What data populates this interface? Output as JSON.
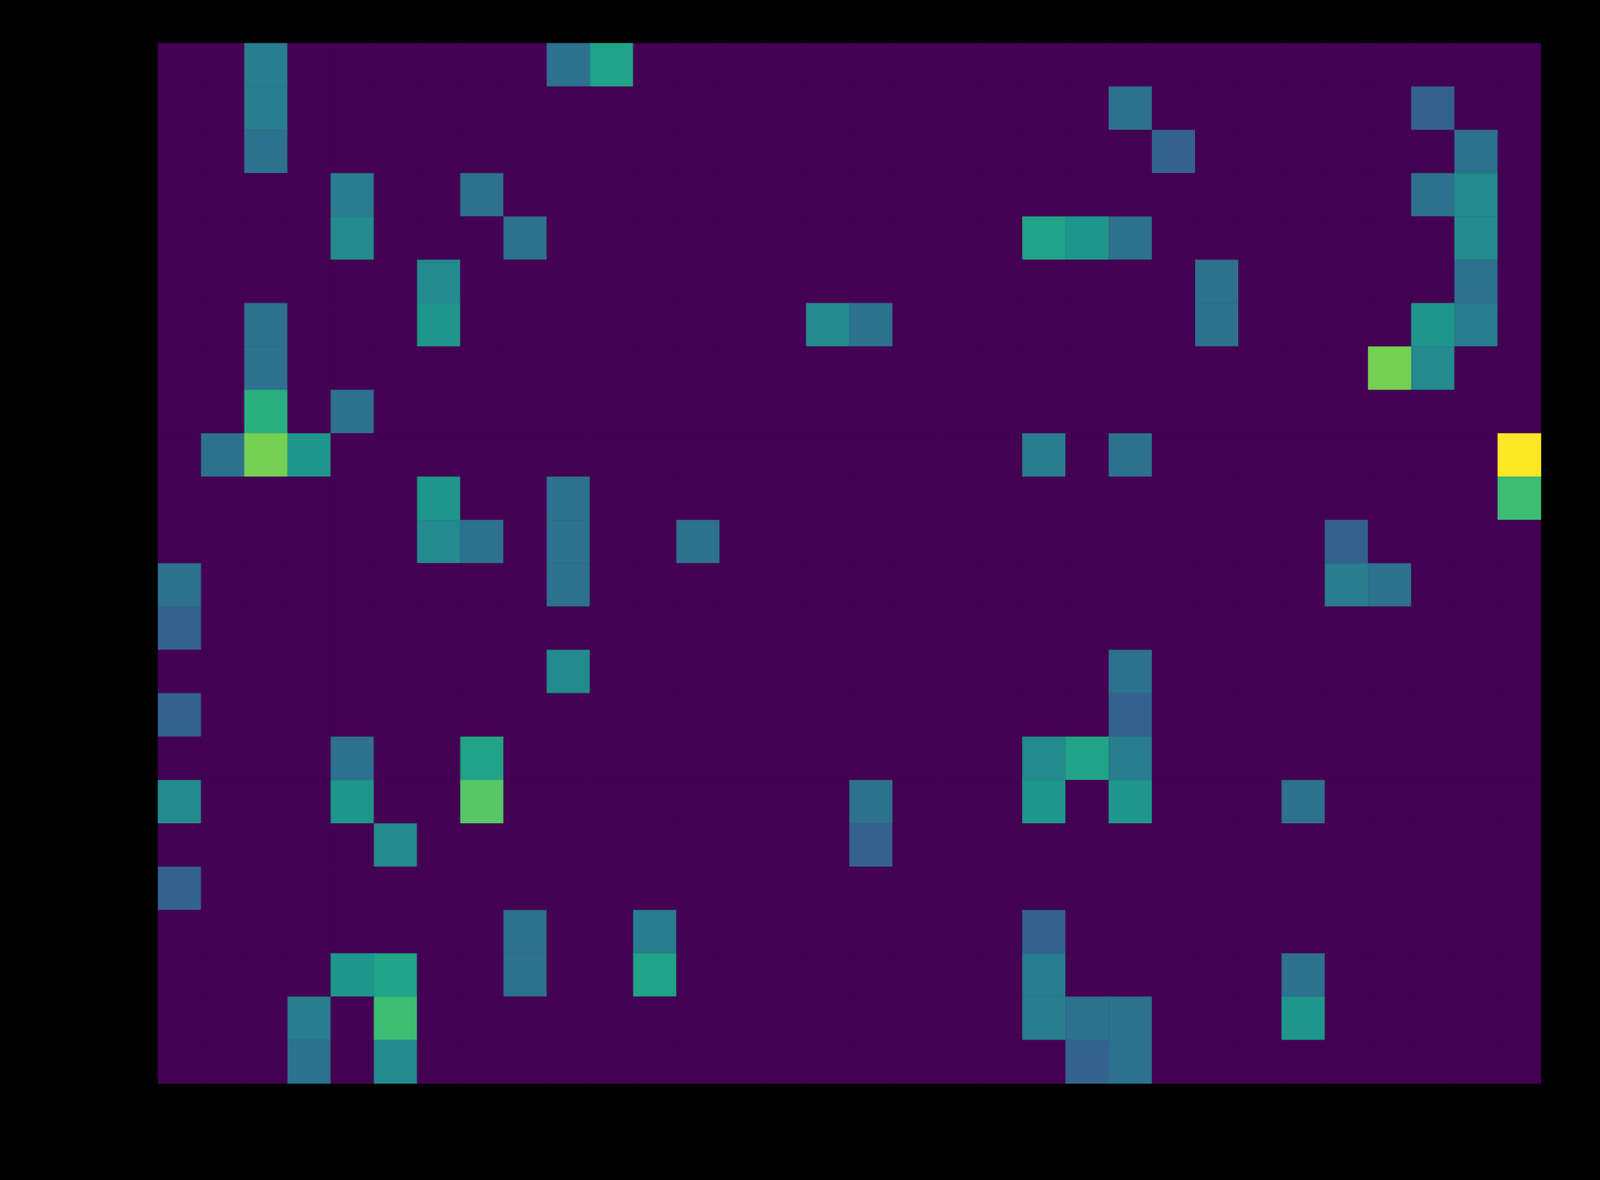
{
  "chart_data": {
    "type": "heatmap",
    "color": "viridis",
    "tick_labels": false,
    "z": [
      [
        0.05,
        0.05,
        0.45,
        0.05,
        0.05,
        0.05,
        0.05,
        0.05,
        0.05,
        0.4,
        0.6,
        0.05,
        0.05,
        0.05,
        0.05,
        0.05,
        0.05,
        0.05,
        0.05,
        0.05,
        0.05,
        0.05,
        0.05,
        0.05,
        0.05,
        0.05,
        0.05,
        0.05,
        0.05,
        0.05,
        0.05,
        0.05
      ],
      [
        0.05,
        0.05,
        0.45,
        0.05,
        0.05,
        0.05,
        0.05,
        0.05,
        0.05,
        0.05,
        0.05,
        0.05,
        0.05,
        0.05,
        0.05,
        0.05,
        0.05,
        0.05,
        0.05,
        0.05,
        0.05,
        0.05,
        0.4,
        0.05,
        0.05,
        0.05,
        0.05,
        0.05,
        0.05,
        0.35,
        0.05,
        0.05
      ],
      [
        0.05,
        0.05,
        0.4,
        0.05,
        0.05,
        0.05,
        0.05,
        0.05,
        0.05,
        0.05,
        0.05,
        0.05,
        0.05,
        0.05,
        0.05,
        0.05,
        0.05,
        0.05,
        0.05,
        0.05,
        0.05,
        0.05,
        0.05,
        0.35,
        0.05,
        0.05,
        0.05,
        0.05,
        0.05,
        0.05,
        0.4,
        0.05
      ],
      [
        0.05,
        0.05,
        0.05,
        0.05,
        0.45,
        0.05,
        0.05,
        0.4,
        0.05,
        0.05,
        0.05,
        0.05,
        0.05,
        0.05,
        0.05,
        0.05,
        0.05,
        0.05,
        0.05,
        0.05,
        0.05,
        0.05,
        0.05,
        0.05,
        0.05,
        0.05,
        0.05,
        0.05,
        0.05,
        0.4,
        0.5,
        0.05
      ],
      [
        0.05,
        0.05,
        0.05,
        0.05,
        0.5,
        0.05,
        0.05,
        0.05,
        0.4,
        0.05,
        0.05,
        0.05,
        0.05,
        0.05,
        0.05,
        0.05,
        0.05,
        0.05,
        0.05,
        0.05,
        0.6,
        0.55,
        0.4,
        0.05,
        0.05,
        0.05,
        0.05,
        0.05,
        0.05,
        0.05,
        0.5,
        0.05
      ],
      [
        0.05,
        0.05,
        0.05,
        0.05,
        0.05,
        0.05,
        0.5,
        0.05,
        0.05,
        0.05,
        0.05,
        0.05,
        0.05,
        0.05,
        0.05,
        0.05,
        0.05,
        0.05,
        0.05,
        0.05,
        0.05,
        0.05,
        0.05,
        0.05,
        0.4,
        0.05,
        0.05,
        0.05,
        0.05,
        0.05,
        0.4,
        0.05
      ],
      [
        0.05,
        0.05,
        0.4,
        0.05,
        0.05,
        0.05,
        0.55,
        0.05,
        0.05,
        0.05,
        0.05,
        0.05,
        0.05,
        0.05,
        0.05,
        0.5,
        0.4,
        0.05,
        0.05,
        0.05,
        0.05,
        0.05,
        0.05,
        0.05,
        0.4,
        0.05,
        0.05,
        0.05,
        0.05,
        0.55,
        0.45,
        0.05
      ],
      [
        0.05,
        0.05,
        0.4,
        0.05,
        0.05,
        0.05,
        0.05,
        0.05,
        0.05,
        0.05,
        0.05,
        0.05,
        0.05,
        0.05,
        0.05,
        0.05,
        0.05,
        0.05,
        0.05,
        0.05,
        0.05,
        0.05,
        0.05,
        0.05,
        0.05,
        0.05,
        0.05,
        0.05,
        0.8,
        0.5,
        0.05,
        0.05
      ],
      [
        0.05,
        0.05,
        0.65,
        0.05,
        0.4,
        0.05,
        0.05,
        0.05,
        0.05,
        0.05,
        0.05,
        0.05,
        0.05,
        0.05,
        0.05,
        0.05,
        0.05,
        0.05,
        0.05,
        0.05,
        0.05,
        0.05,
        0.05,
        0.05,
        0.05,
        0.05,
        0.05,
        0.05,
        0.05,
        0.05,
        0.05,
        0.05
      ],
      [
        0.05,
        0.4,
        0.8,
        0.55,
        0.05,
        0.05,
        0.05,
        0.05,
        0.05,
        0.05,
        0.05,
        0.05,
        0.05,
        0.05,
        0.05,
        0.05,
        0.05,
        0.05,
        0.05,
        0.05,
        0.45,
        0.05,
        0.4,
        0.05,
        0.05,
        0.05,
        0.05,
        0.05,
        0.05,
        0.05,
        0.05,
        1.0
      ],
      [
        0.05,
        0.05,
        0.05,
        0.05,
        0.05,
        0.05,
        0.55,
        0.05,
        0.05,
        0.4,
        0.05,
        0.05,
        0.05,
        0.05,
        0.05,
        0.05,
        0.05,
        0.05,
        0.05,
        0.05,
        0.05,
        0.05,
        0.05,
        0.05,
        0.05,
        0.05,
        0.05,
        0.05,
        0.05,
        0.05,
        0.05,
        0.7
      ],
      [
        0.05,
        0.05,
        0.05,
        0.05,
        0.05,
        0.05,
        0.5,
        0.4,
        0.05,
        0.4,
        0.05,
        0.05,
        0.4,
        0.05,
        0.05,
        0.05,
        0.05,
        0.05,
        0.05,
        0.05,
        0.05,
        0.05,
        0.05,
        0.05,
        0.05,
        0.05,
        0.05,
        0.35,
        0.05,
        0.05,
        0.05,
        0.05
      ],
      [
        0.4,
        0.05,
        0.05,
        0.05,
        0.05,
        0.05,
        0.05,
        0.05,
        0.05,
        0.4,
        0.05,
        0.05,
        0.05,
        0.05,
        0.05,
        0.05,
        0.05,
        0.05,
        0.05,
        0.05,
        0.05,
        0.05,
        0.05,
        0.05,
        0.05,
        0.05,
        0.05,
        0.45,
        0.4,
        0.05,
        0.05,
        0.05
      ],
      [
        0.35,
        0.05,
        0.05,
        0.05,
        0.05,
        0.05,
        0.05,
        0.05,
        0.05,
        0.05,
        0.05,
        0.05,
        0.05,
        0.05,
        0.05,
        0.05,
        0.05,
        0.05,
        0.05,
        0.05,
        0.05,
        0.05,
        0.05,
        0.05,
        0.05,
        0.05,
        0.05,
        0.05,
        0.05,
        0.05,
        0.05,
        0.05
      ],
      [
        0.05,
        0.05,
        0.05,
        0.05,
        0.05,
        0.05,
        0.05,
        0.05,
        0.05,
        0.5,
        0.05,
        0.05,
        0.05,
        0.05,
        0.05,
        0.05,
        0.05,
        0.05,
        0.05,
        0.05,
        0.05,
        0.05,
        0.4,
        0.05,
        0.05,
        0.05,
        0.05,
        0.05,
        0.05,
        0.05,
        0.05,
        0.05
      ],
      [
        0.35,
        0.05,
        0.05,
        0.05,
        0.05,
        0.05,
        0.05,
        0.05,
        0.05,
        0.05,
        0.05,
        0.05,
        0.05,
        0.05,
        0.05,
        0.05,
        0.05,
        0.05,
        0.05,
        0.05,
        0.05,
        0.05,
        0.35,
        0.05,
        0.05,
        0.05,
        0.05,
        0.05,
        0.05,
        0.05,
        0.05,
        0.05
      ],
      [
        0.05,
        0.05,
        0.05,
        0.05,
        0.4,
        0.05,
        0.05,
        0.6,
        0.05,
        0.05,
        0.05,
        0.05,
        0.05,
        0.05,
        0.05,
        0.05,
        0.05,
        0.05,
        0.05,
        0.05,
        0.5,
        0.6,
        0.45,
        0.05,
        0.05,
        0.05,
        0.05,
        0.05,
        0.05,
        0.05,
        0.05,
        0.05
      ],
      [
        0.5,
        0.05,
        0.05,
        0.05,
        0.55,
        0.05,
        0.05,
        0.75,
        0.05,
        0.05,
        0.05,
        0.05,
        0.05,
        0.05,
        0.05,
        0.05,
        0.4,
        0.05,
        0.05,
        0.05,
        0.55,
        0.05,
        0.55,
        0.05,
        0.05,
        0.05,
        0.4,
        0.05,
        0.05,
        0.05,
        0.05,
        0.05
      ],
      [
        0.05,
        0.05,
        0.05,
        0.05,
        0.05,
        0.5,
        0.05,
        0.05,
        0.05,
        0.05,
        0.05,
        0.05,
        0.05,
        0.05,
        0.05,
        0.05,
        0.35,
        0.05,
        0.05,
        0.05,
        0.05,
        0.05,
        0.05,
        0.05,
        0.05,
        0.05,
        0.05,
        0.05,
        0.05,
        0.05,
        0.05,
        0.05
      ],
      [
        0.35,
        0.05,
        0.05,
        0.05,
        0.05,
        0.05,
        0.05,
        0.05,
        0.05,
        0.05,
        0.05,
        0.05,
        0.05,
        0.05,
        0.05,
        0.05,
        0.05,
        0.05,
        0.05,
        0.05,
        0.05,
        0.05,
        0.05,
        0.05,
        0.05,
        0.05,
        0.05,
        0.05,
        0.05,
        0.05,
        0.05,
        0.05
      ],
      [
        0.05,
        0.05,
        0.05,
        0.05,
        0.05,
        0.05,
        0.05,
        0.05,
        0.4,
        0.05,
        0.05,
        0.45,
        0.05,
        0.05,
        0.05,
        0.05,
        0.05,
        0.05,
        0.05,
        0.05,
        0.35,
        0.05,
        0.05,
        0.05,
        0.05,
        0.05,
        0.05,
        0.05,
        0.05,
        0.05,
        0.05,
        0.05
      ],
      [
        0.05,
        0.05,
        0.05,
        0.05,
        0.55,
        0.6,
        0.05,
        0.05,
        0.4,
        0.05,
        0.05,
        0.6,
        0.05,
        0.05,
        0.05,
        0.05,
        0.05,
        0.05,
        0.05,
        0.05,
        0.45,
        0.05,
        0.05,
        0.05,
        0.05,
        0.05,
        0.4,
        0.05,
        0.05,
        0.05,
        0.05,
        0.05
      ],
      [
        0.05,
        0.05,
        0.05,
        0.45,
        0.05,
        0.7,
        0.05,
        0.05,
        0.05,
        0.05,
        0.05,
        0.05,
        0.05,
        0.05,
        0.05,
        0.05,
        0.05,
        0.05,
        0.05,
        0.05,
        0.45,
        0.4,
        0.4,
        0.05,
        0.05,
        0.05,
        0.55,
        0.05,
        0.05,
        0.05,
        0.05,
        0.05
      ],
      [
        0.05,
        0.05,
        0.05,
        0.4,
        0.05,
        0.5,
        0.05,
        0.05,
        0.05,
        0.05,
        0.05,
        0.05,
        0.05,
        0.05,
        0.05,
        0.05,
        0.05,
        0.05,
        0.05,
        0.05,
        0.05,
        0.35,
        0.4,
        0.05,
        0.05,
        0.05,
        0.05,
        0.05,
        0.05,
        0.05,
        0.05,
        0.05
      ]
    ]
  }
}
